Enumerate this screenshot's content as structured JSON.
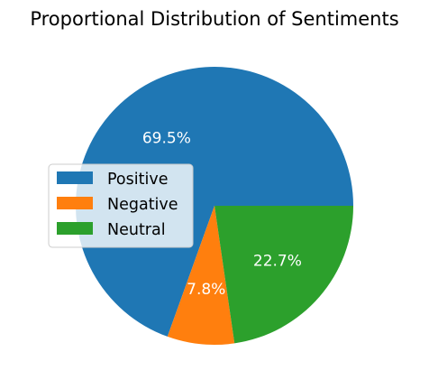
{
  "chart_data": {
    "type": "pie",
    "title": "Proportional Distribution of Sentiments",
    "categories": [
      "Positive",
      "Negative",
      "Neutral"
    ],
    "values": [
      69.5,
      7.8,
      22.7
    ],
    "labels": [
      "69.5%",
      "7.8%",
      "22.7%"
    ],
    "colors": [
      "#1f77b4",
      "#ff7f0e",
      "#2ca02c"
    ],
    "legend": {
      "placement": "center-left",
      "entries": [
        "Positive",
        "Negative",
        "Neutral"
      ]
    }
  }
}
